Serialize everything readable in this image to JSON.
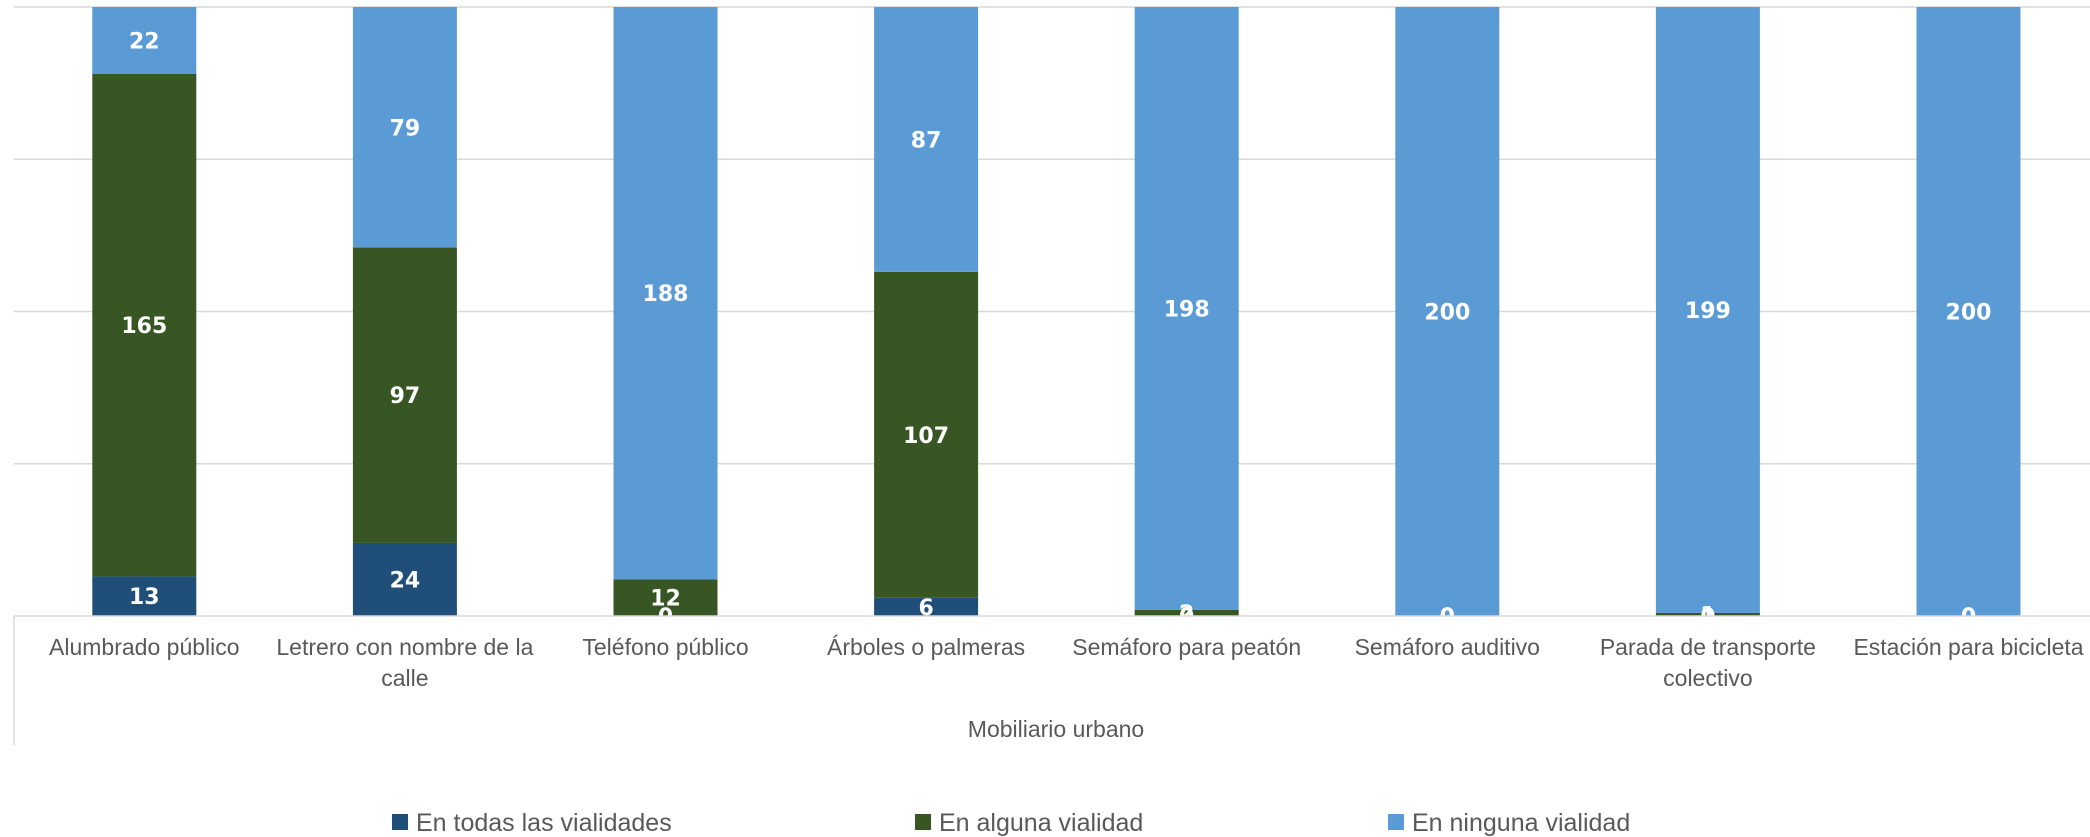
{
  "chart_data": {
    "type": "bar",
    "stacked": true,
    "title": "",
    "xlabel": "Mobiliario urbano",
    "ylabel": "",
    "categories": [
      "Alumbrado público",
      "Letrero con nombre de la calle",
      "Teléfono público",
      "Árboles o palmeras",
      "Semáforo para peatón",
      "Semáforo auditivo",
      "Parada de transporte colectivo",
      "Estación para bicicleta"
    ],
    "series": [
      {
        "name": "En todas las vialidades",
        "color": "#1F4E79",
        "values": [
          13,
          24,
          0,
          6,
          0,
          0,
          0,
          0
        ]
      },
      {
        "name": "En alguna vialidad",
        "color": "#375623",
        "values": [
          165,
          97,
          12,
          107,
          2,
          0,
          1,
          0
        ]
      },
      {
        "name": "En ninguna vialidad",
        "color": "#5B9BD5",
        "values": [
          22,
          79,
          188,
          87,
          198,
          200,
          199,
          200
        ]
      }
    ],
    "ylim": [
      0,
      200
    ],
    "grid": true,
    "legend": "bottom"
  }
}
